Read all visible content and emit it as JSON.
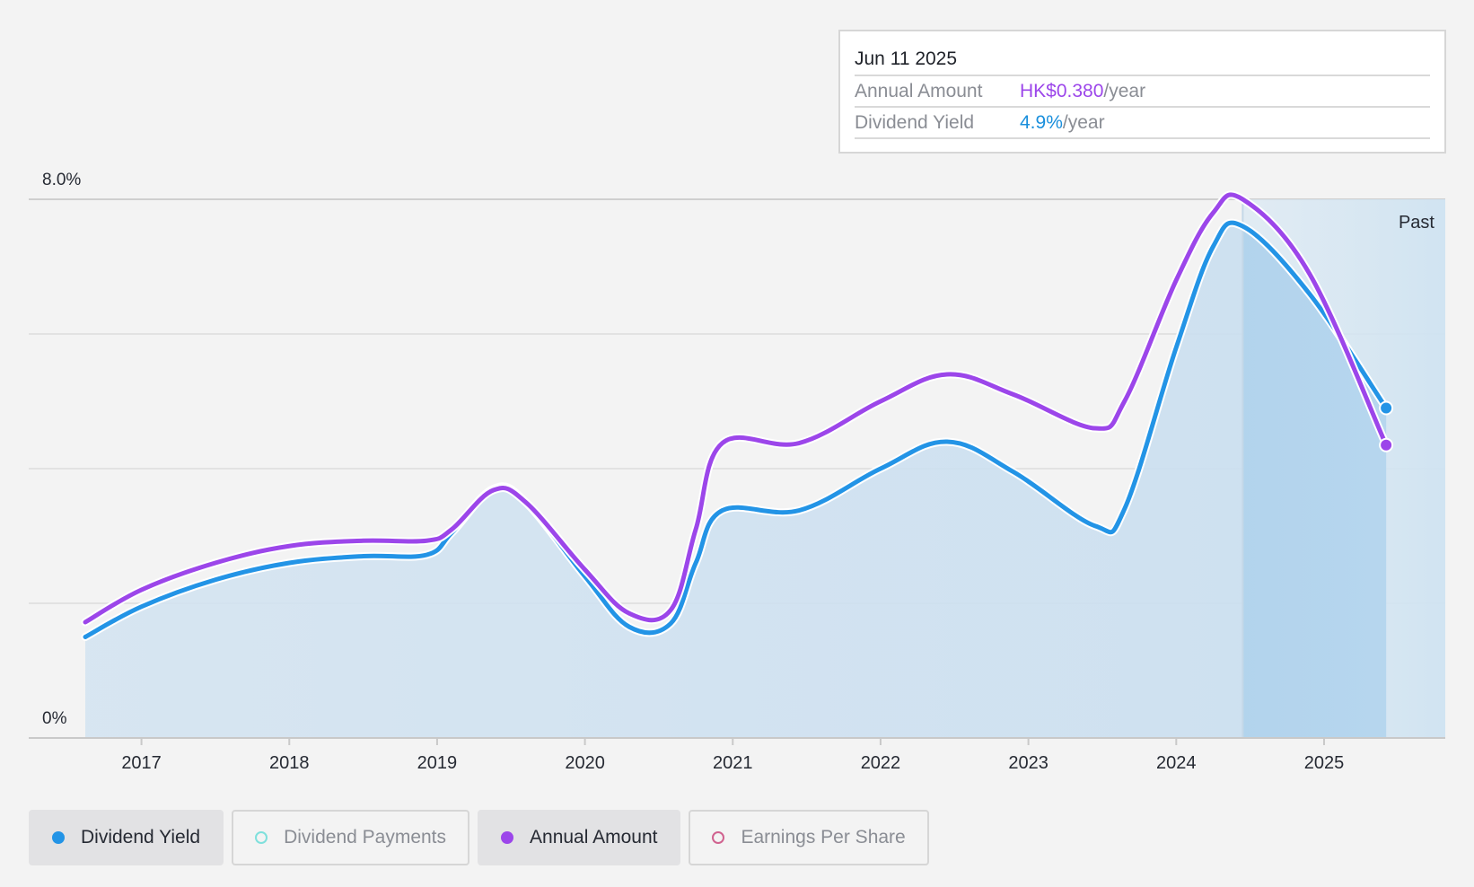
{
  "tooltip": {
    "date": "Jun 11 2025",
    "rows": [
      {
        "label": "Annual Amount",
        "value": "HK$0.380",
        "unit": "/year"
      },
      {
        "label": "Dividend Yield",
        "value": "4.9%",
        "unit": "/year"
      }
    ]
  },
  "past_label": "Past",
  "legend": [
    {
      "label": "Dividend Yield",
      "color": "#2394e6",
      "filled": true,
      "active": true
    },
    {
      "label": "Dividend Payments",
      "color": "#7fe0dc",
      "filled": false,
      "active": false
    },
    {
      "label": "Annual Amount",
      "color": "#9c46ea",
      "filled": true,
      "active": true
    },
    {
      "label": "Earnings Per Share",
      "color": "#d0628f",
      "filled": false,
      "active": false
    }
  ],
  "chart_data": {
    "type": "line",
    "title": "",
    "xlabel": "",
    "ylabel": "",
    "y_tick_labels": [
      "8.0%",
      "0%"
    ],
    "ylim": [
      0,
      8
    ],
    "xlim": [
      2016.25,
      2025.45
    ],
    "x_ticks": [
      2017,
      2018,
      2019,
      2020,
      2021,
      2022,
      2023,
      2024,
      2025
    ],
    "grid": true,
    "past_region_start": 2024.45,
    "series": [
      {
        "name": "Dividend Yield",
        "color": "#2394e6",
        "area": true,
        "points": [
          [
            2016.62,
            1.5
          ],
          [
            2017.0,
            1.95
          ],
          [
            2017.5,
            2.35
          ],
          [
            2018.0,
            2.6
          ],
          [
            2018.5,
            2.7
          ],
          [
            2018.93,
            2.72
          ],
          [
            2019.1,
            3.05
          ],
          [
            2019.38,
            3.7
          ],
          [
            2019.6,
            3.5
          ],
          [
            2020.0,
            2.4
          ],
          [
            2020.3,
            1.65
          ],
          [
            2020.58,
            1.7
          ],
          [
            2020.75,
            2.6
          ],
          [
            2020.93,
            3.38
          ],
          [
            2021.45,
            3.38
          ],
          [
            2022.0,
            4.0
          ],
          [
            2022.45,
            4.4
          ],
          [
            2022.9,
            3.95
          ],
          [
            2023.45,
            3.15
          ],
          [
            2023.65,
            3.4
          ],
          [
            2024.0,
            5.8
          ],
          [
            2024.25,
            7.3
          ],
          [
            2024.45,
            7.6
          ],
          [
            2024.9,
            6.6
          ],
          [
            2025.42,
            4.9
          ]
        ]
      },
      {
        "name": "Annual Amount",
        "color": "#9c46ea",
        "area": false,
        "points": [
          [
            2016.62,
            1.72
          ],
          [
            2017.0,
            2.2
          ],
          [
            2017.5,
            2.6
          ],
          [
            2018.0,
            2.85
          ],
          [
            2018.5,
            2.93
          ],
          [
            2018.93,
            2.93
          ],
          [
            2019.1,
            3.1
          ],
          [
            2019.38,
            3.68
          ],
          [
            2019.6,
            3.5
          ],
          [
            2020.0,
            2.5
          ],
          [
            2020.3,
            1.85
          ],
          [
            2020.58,
            1.9
          ],
          [
            2020.75,
            3.1
          ],
          [
            2020.93,
            4.38
          ],
          [
            2021.45,
            4.38
          ],
          [
            2022.0,
            5.0
          ],
          [
            2022.45,
            5.4
          ],
          [
            2022.9,
            5.1
          ],
          [
            2023.45,
            4.6
          ],
          [
            2023.65,
            5.0
          ],
          [
            2024.0,
            6.8
          ],
          [
            2024.25,
            7.8
          ],
          [
            2024.45,
            8.0
          ],
          [
            2024.9,
            6.9
          ],
          [
            2025.42,
            4.35
          ]
        ]
      }
    ]
  }
}
